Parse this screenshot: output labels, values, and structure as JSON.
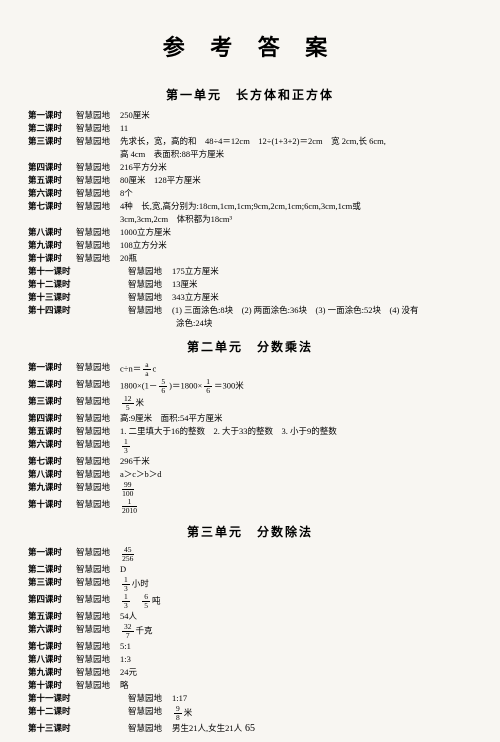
{
  "title": "参 考 答 案",
  "pageNum": "65",
  "units": [
    {
      "heading": "第一单元　长方体和正方体",
      "rows": [
        {
          "lesson": "第一课时",
          "label": "智慧园地",
          "text": "250厘米"
        },
        {
          "lesson": "第二课时",
          "label": "智慧园地",
          "text": "11"
        },
        {
          "lesson": "第三课时",
          "label": "智慧园地",
          "text": "先求长，宽，高的和　48÷4＝12cm　12÷(1+3+2)＝2cm　宽 2cm,长 6cm,"
        },
        {
          "lesson": "",
          "label": "",
          "text": "高 4cm　表面积:88平方厘米"
        },
        {
          "lesson": "第四课时",
          "label": "智慧园地",
          "text": "216平方分米"
        },
        {
          "lesson": "第五课时",
          "label": "智慧园地",
          "text": "80厘米　128平方厘米"
        },
        {
          "lesson": "第六课时",
          "label": "智慧园地",
          "text": "8个"
        },
        {
          "lesson": "第七课时",
          "label": "智慧园地",
          "text": "4种　长,宽,高分别为:18cm,1cm,1cm;9cm,2cm,1cm;6cm,3cm,1cm或"
        },
        {
          "lesson": "",
          "label": "",
          "text": "3cm,3cm,2cm　体积都为18cm³"
        },
        {
          "lesson": "第八课时",
          "label": "智慧园地",
          "text": "1000立方厘米"
        },
        {
          "lesson": "第九课时",
          "label": "智慧园地",
          "text": "108立方分米"
        },
        {
          "lesson": "第十课时",
          "label": "智慧园地",
          "text": "20瓶"
        },
        {
          "lesson": "第十一课时",
          "label": "智慧园地",
          "text": "175立方厘米",
          "indent": true
        },
        {
          "lesson": "第十二课时",
          "label": "智慧园地",
          "text": "13厘米",
          "indent": true
        },
        {
          "lesson": "第十三课时",
          "label": "智慧园地",
          "text": "343立方厘米",
          "indent": true
        },
        {
          "lesson": "第十四课时",
          "label": "智慧园地",
          "text": "(1) 三面涂色:8块　(2) 两面涂色:36块　(3) 一面涂色:52块　(4) 没有",
          "indent": true
        },
        {
          "lesson": "",
          "label": "",
          "text": "涂色:24块",
          "pad": true
        }
      ]
    },
    {
      "heading": "第二单元　分数乘法",
      "rows": [
        {
          "lesson": "第一课时",
          "label": "智慧园地",
          "text": "c÷n＝",
          "frac": "a/a",
          "tail": "c"
        },
        {
          "lesson": "第二课时",
          "label": "智慧园地",
          "text": "1800×(1－",
          "frac": "5/6",
          "tail": ")＝1800×",
          "frac2": "1/6",
          "tail2": "＝300米"
        },
        {
          "lesson": "第三课时",
          "label": "智慧园地",
          "text": "",
          "frac": "12/5",
          "tail": "米"
        },
        {
          "lesson": "第四课时",
          "label": "智慧园地",
          "text": "高:9厘米　面积:54平方厘米"
        },
        {
          "lesson": "第五课时",
          "label": "智慧园地",
          "text": "1. 二里填大于16的整数　2. 大于33的整数　3. 小于9的整数"
        },
        {
          "lesson": "第六课时",
          "label": "智慧园地",
          "text": "",
          "frac": "1/3"
        },
        {
          "lesson": "第七课时",
          "label": "智慧园地",
          "text": "296千米"
        },
        {
          "lesson": "第八课时",
          "label": "智慧园地",
          "text": "a＞c＞b＞d"
        },
        {
          "lesson": "第九课时",
          "label": "智慧园地",
          "text": "",
          "frac": "99/100"
        },
        {
          "lesson": "第十课时",
          "label": "智慧园地",
          "text": "",
          "frac": "1/2010"
        }
      ]
    },
    {
      "heading": "第三单元　分数除法",
      "rows": [
        {
          "lesson": "第一课时",
          "label": "智慧园地",
          "text": "",
          "frac": "45/256"
        },
        {
          "lesson": "第二课时",
          "label": "智慧园地",
          "text": "D"
        },
        {
          "lesson": "第三课时",
          "label": "智慧园地",
          "text": "",
          "frac": "1/3",
          "tail": "小时"
        },
        {
          "lesson": "第四课时",
          "label": "智慧园地",
          "text": "",
          "frac": "1/3",
          "tail": "　",
          "frac2": "6/5",
          "tail2": "吨"
        },
        {
          "lesson": "第五课时",
          "label": "智慧园地",
          "text": "54人"
        },
        {
          "lesson": "第六课时",
          "label": "智慧园地",
          "text": "",
          "frac": "32/7",
          "tail": "千克"
        },
        {
          "lesson": "第七课时",
          "label": "智慧园地",
          "text": "5:1"
        },
        {
          "lesson": "第八课时",
          "label": "智慧园地",
          "text": "1:3"
        },
        {
          "lesson": "第九课时",
          "label": "智慧园地",
          "text": "24元"
        },
        {
          "lesson": "第十课时",
          "label": "智慧园地",
          "text": "略"
        },
        {
          "lesson": "第十一课时",
          "label": "智慧园地",
          "text": "1:17",
          "indent": true
        },
        {
          "lesson": "第十二课时",
          "label": "智慧园地",
          "text": "",
          "frac": "9/8",
          "tail": "米",
          "indent": true
        },
        {
          "lesson": "第十三课时",
          "label": "智慧园地",
          "text": "男生21人,女生21人",
          "indent": true
        }
      ]
    }
  ]
}
